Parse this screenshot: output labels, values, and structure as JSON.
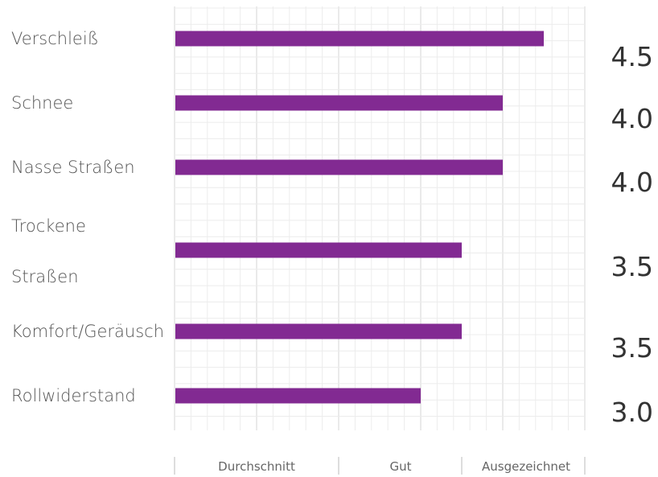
{
  "chart_data": {
    "type": "bar",
    "orientation": "horizontal",
    "categories": [
      [
        "Verschleiß"
      ],
      [
        "Schnee"
      ],
      [
        "Nasse Straßen"
      ],
      [
        "Trockene",
        "Straßen"
      ],
      [
        "Komfort/Geräusch"
      ],
      [
        "Rollwiderstand"
      ]
    ],
    "values": [
      4.5,
      4.0,
      4.0,
      3.5,
      3.5,
      3.0
    ],
    "value_labels": [
      "4.5",
      "4.0",
      "4.0",
      "3.5",
      "3.5",
      "3.0"
    ],
    "xlim": [
      0,
      5
    ],
    "x_tick_labels": [
      "Durchschnitt",
      "Gut",
      "Ausgezeichnet"
    ],
    "grid": true,
    "colors": {
      "bar": "#822a92",
      "grid_minor": "#ececec",
      "grid_major": "#d6d6d6"
    }
  }
}
